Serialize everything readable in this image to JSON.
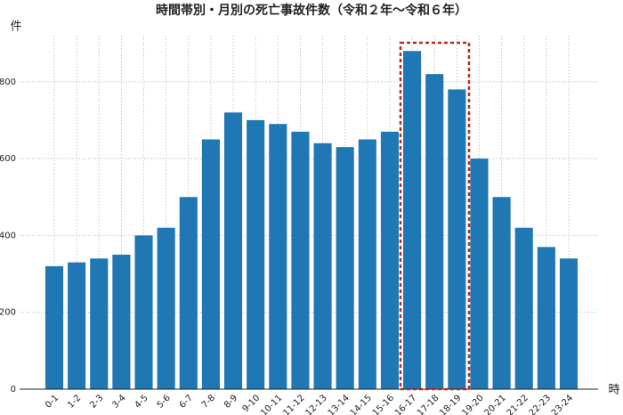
{
  "chart_data": {
    "type": "bar",
    "title": "時間帯別・月別の死亡事故件数（令和２年〜令和６年）",
    "y_label": "件",
    "x_label": "時",
    "categories": [
      "0-1",
      "1-2",
      "2-3",
      "3-4",
      "4-5",
      "5-6",
      "6-7",
      "7-8",
      "8-9",
      "9-10",
      "10-11",
      "11-12",
      "12-13",
      "13-14",
      "14-15",
      "15-16",
      "16-17",
      "17-18",
      "18-19",
      "19-20",
      "20-21",
      "21-22",
      "22-23",
      "23-24"
    ],
    "values": [
      320,
      330,
      340,
      350,
      400,
      420,
      500,
      650,
      720,
      700,
      690,
      670,
      640,
      630,
      650,
      670,
      880,
      820,
      780,
      600,
      500,
      420,
      370,
      340
    ],
    "color": "#1f77b4",
    "ylim": [
      0,
      920
    ],
    "yticks": [
      0,
      200,
      400,
      600,
      800
    ],
    "grid": true
  }
}
